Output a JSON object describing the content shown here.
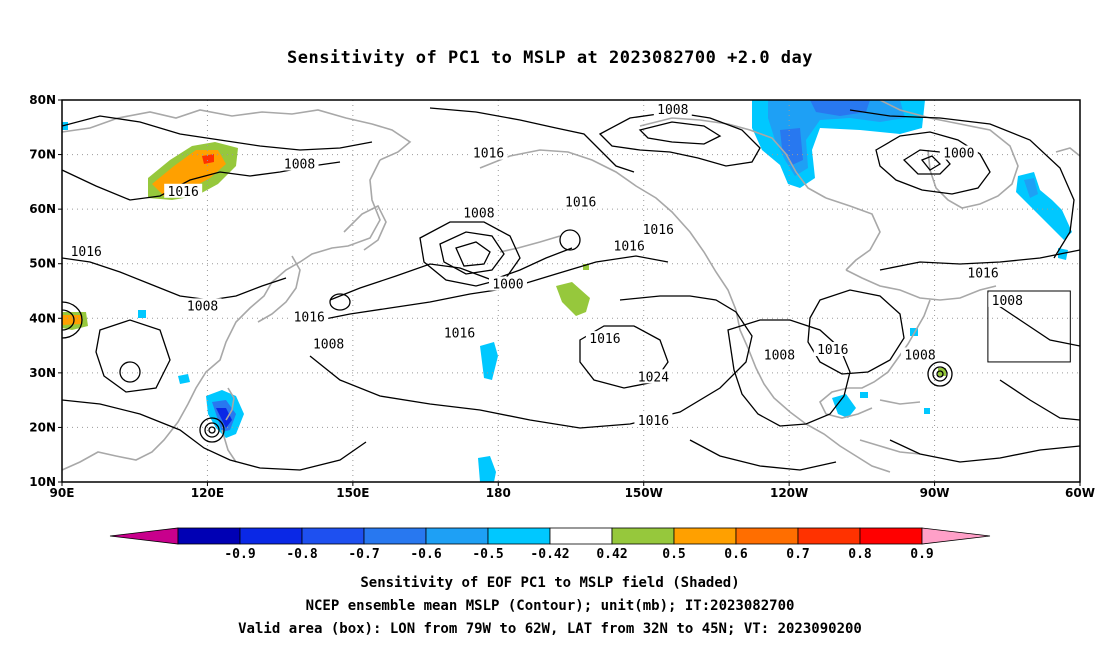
{
  "title": "Sensitivity of PC1 to MSLP at 2023082700 +2.0 day",
  "footer": {
    "line1": "Sensitivity of EOF PC1 to MSLP field (Shaded)",
    "line2": "NCEP ensemble mean MSLP (Contour); unit(mb); IT:2023082700",
    "line3": "Valid area (box): LON from 79W to 62W, LAT from 32N to 45N; VT: 2023090200"
  },
  "map": {
    "lat_labels": [
      "80N",
      "70N",
      "60N",
      "50N",
      "40N",
      "30N",
      "20N",
      "10N"
    ],
    "lon_labels": [
      "90E",
      "120E",
      "150E",
      "180",
      "150W",
      "120W",
      "90W",
      "60W"
    ],
    "lat_range": [
      10,
      80
    ],
    "lon_range_east": [
      90,
      300
    ],
    "valid_box": {
      "lon": [
        -79,
        -62
      ],
      "lat": [
        32,
        45
      ]
    },
    "contour_labels": [
      {
        "text": "1008",
        "lon": 216,
        "lat": 78
      },
      {
        "text": "1016",
        "lon": 178,
        "lat": 70
      },
      {
        "text": "1008",
        "lon": 139,
        "lat": 68
      },
      {
        "text": "1016",
        "lon": 115,
        "lat": 63
      },
      {
        "text": "1000",
        "lon": 275,
        "lat": 70
      },
      {
        "text": "1016",
        "lon": 197,
        "lat": 61
      },
      {
        "text": "1008",
        "lon": 176,
        "lat": 59
      },
      {
        "text": "1016",
        "lon": 213,
        "lat": 56
      },
      {
        "text": "1016",
        "lon": 207,
        "lat": 53
      },
      {
        "text": "1016",
        "lon": 95,
        "lat": 52
      },
      {
        "text": "1000",
        "lon": 182,
        "lat": 46
      },
      {
        "text": "1008",
        "lon": 285,
        "lat": 43
      },
      {
        "text": "1016",
        "lon": 280,
        "lat": 48
      },
      {
        "text": "1008",
        "lon": 119,
        "lat": 42
      },
      {
        "text": "1016",
        "lon": 141,
        "lat": 40
      },
      {
        "text": "1016",
        "lon": 172,
        "lat": 37
      },
      {
        "text": "1008",
        "lon": 145,
        "lat": 35
      },
      {
        "text": "1016",
        "lon": 202,
        "lat": 36
      },
      {
        "text": "1008",
        "lon": 238,
        "lat": 33
      },
      {
        "text": "1016",
        "lon": 249,
        "lat": 34
      },
      {
        "text": "1008",
        "lon": 267,
        "lat": 33
      },
      {
        "text": "1024",
        "lon": 212,
        "lat": 29
      },
      {
        "text": "1016",
        "lon": 212,
        "lat": 21
      }
    ],
    "colors": {
      "land": "#a8a8a8",
      "contour": "#000000",
      "grid": "#9a9a9a"
    }
  },
  "colorbar": {
    "labels": [
      "-0.9",
      "-0.8",
      "-0.7",
      "-0.6",
      "-0.5",
      "-0.42",
      "0.42",
      "0.5",
      "0.6",
      "0.7",
      "0.8",
      "0.9"
    ],
    "colors": [
      "#c8008c",
      "#0000b4",
      "#0a28e6",
      "#1e50f0",
      "#2878f0",
      "#1ea0f5",
      "#00c8ff",
      "#ffffff",
      "#96c83c",
      "#ffa000",
      "#ff6e00",
      "#ff3200",
      "#ff0000",
      "#ffa0c8"
    ]
  }
}
